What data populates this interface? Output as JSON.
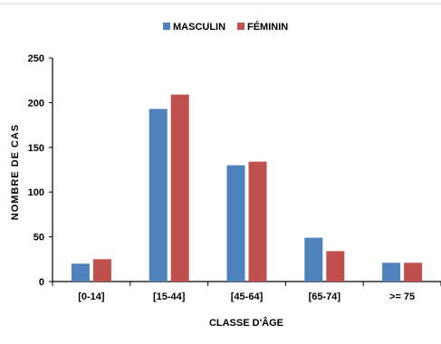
{
  "chart_data": {
    "type": "bar",
    "categories": [
      "[0-14]",
      "[15-44]",
      "[45-64]",
      "[65-74]",
      ">= 75"
    ],
    "series": [
      {
        "name": "MASCULIN",
        "values": [
          20,
          193,
          130,
          49,
          21
        ],
        "color": "#4F81BD"
      },
      {
        "name": "FÉMININ",
        "values": [
          25,
          209,
          134,
          34,
          21
        ],
        "color": "#C0504D"
      }
    ],
    "title": "",
    "xlabel": "CLASSE D'ÂGE",
    "ylabel": "NOMBRE DE CAS",
    "ylim": [
      0,
      250
    ],
    "yticks": [
      "0",
      "50",
      "100",
      "150",
      "200",
      "250"
    ],
    "grid": false,
    "legend": "top-center"
  }
}
